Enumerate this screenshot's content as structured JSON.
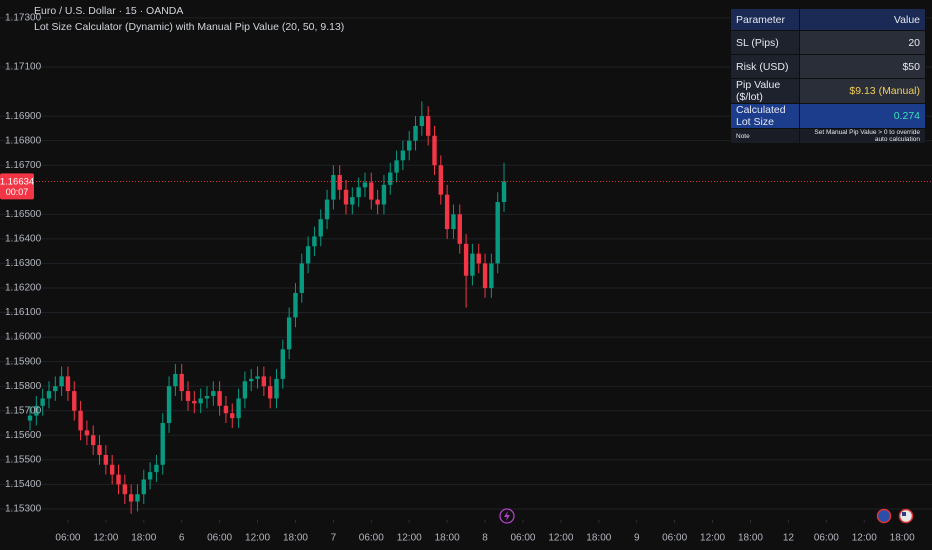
{
  "header": {
    "symbol": "Euro / U.S. Dollar · 15 · OANDA",
    "indicator": "Lot Size Calculator (Dynamic) with Manual Pip Value (20, 50, 9.13)"
  },
  "chart_data": {
    "type": "candlestick",
    "x": [
      0,
      1,
      2,
      3,
      4,
      5,
      6,
      7,
      8,
      9,
      10,
      11,
      12,
      13,
      14,
      15,
      16,
      17,
      18,
      19,
      20,
      21,
      22,
      23,
      24,
      25,
      26,
      27,
      28,
      29,
      30,
      31,
      32,
      33,
      34,
      35,
      36,
      37,
      38,
      39,
      40,
      41,
      42,
      43,
      44,
      45,
      46,
      47,
      48,
      49,
      50,
      51,
      52,
      53,
      54,
      55,
      56,
      57,
      58,
      59,
      60,
      61,
      62,
      63,
      64,
      65,
      66,
      67,
      68,
      69,
      70,
      71,
      72,
      73,
      74,
      75
    ],
    "open": [
      1.1566,
      1.1568,
      1.1572,
      1.1575,
      1.1578,
      1.158,
      1.1584,
      1.1578,
      1.157,
      1.1562,
      1.156,
      1.1556,
      1.1552,
      1.1548,
      1.1544,
      1.154,
      1.1536,
      1.1533,
      1.1536,
      1.1542,
      1.1545,
      1.1548,
      1.1565,
      1.158,
      1.1585,
      1.1578,
      1.1574,
      1.1573,
      1.1575,
      1.1576,
      1.1578,
      1.1572,
      1.1569,
      1.1567,
      1.1575,
      1.1582,
      1.1583,
      1.1584,
      1.158,
      1.1575,
      1.1583,
      1.1595,
      1.1608,
      1.1618,
      1.163,
      1.1637,
      1.1641,
      1.1648,
      1.1656,
      1.1666,
      1.166,
      1.1654,
      1.1657,
      1.1661,
      1.1663,
      1.1656,
      1.1654,
      1.1662,
      1.1667,
      1.1672,
      1.1676,
      1.168,
      1.1686,
      1.169,
      1.1682,
      1.167,
      1.1658,
      1.1644,
      1.165,
      1.1638,
      1.1625,
      1.1634,
      1.163,
      1.162,
      1.163,
      1.1655
    ],
    "high": [
      1.1572,
      1.1576,
      1.1579,
      1.1582,
      1.1584,
      1.1588,
      1.1588,
      1.1582,
      1.1574,
      1.1566,
      1.1564,
      1.156,
      1.1556,
      1.1552,
      1.1548,
      1.1544,
      1.154,
      1.154,
      1.1546,
      1.1549,
      1.1552,
      1.1569,
      1.1584,
      1.1589,
      1.1589,
      1.1582,
      1.1578,
      1.1579,
      1.158,
      1.1582,
      1.1582,
      1.1576,
      1.1573,
      1.1579,
      1.1586,
      1.1587,
      1.1588,
      1.1588,
      1.1584,
      1.1587,
      1.1599,
      1.1612,
      1.1622,
      1.1634,
      1.1641,
      1.1645,
      1.1652,
      1.166,
      1.167,
      1.167,
      1.1664,
      1.1661,
      1.1665,
      1.1667,
      1.1667,
      1.166,
      1.1666,
      1.1671,
      1.1676,
      1.168,
      1.1684,
      1.169,
      1.1696,
      1.1694,
      1.1686,
      1.1674,
      1.1662,
      1.1654,
      1.1654,
      1.1642,
      1.1638,
      1.1638,
      1.1634,
      1.1634,
      1.1659,
      1.1671
    ],
    "low": [
      1.1562,
      1.1564,
      1.1568,
      1.1571,
      1.1574,
      1.1576,
      1.1574,
      1.1566,
      1.1558,
      1.1556,
      1.1552,
      1.1548,
      1.1544,
      1.154,
      1.1536,
      1.1532,
      1.1528,
      1.1529,
      1.1532,
      1.1538,
      1.1541,
      1.1544,
      1.1561,
      1.1576,
      1.1574,
      1.157,
      1.1569,
      1.1569,
      1.1571,
      1.1572,
      1.1568,
      1.1565,
      1.1563,
      1.1563,
      1.1571,
      1.1578,
      1.1579,
      1.1576,
      1.1571,
      1.1571,
      1.1579,
      1.1591,
      1.1604,
      1.1614,
      1.1626,
      1.1633,
      1.1637,
      1.1644,
      1.1652,
      1.1656,
      1.165,
      1.165,
      1.1653,
      1.1657,
      1.1652,
      1.165,
      1.165,
      1.1658,
      1.1663,
      1.1668,
      1.1672,
      1.1676,
      1.1682,
      1.1678,
      1.1666,
      1.1654,
      1.164,
      1.164,
      1.1634,
      1.1612,
      1.1621,
      1.1626,
      1.1616,
      1.1616,
      1.1626,
      1.1651
    ],
    "close": [
      1.1568,
      1.1572,
      1.1575,
      1.1578,
      1.158,
      1.1584,
      1.1578,
      1.157,
      1.1562,
      1.156,
      1.1556,
      1.1552,
      1.1548,
      1.1544,
      1.154,
      1.1536,
      1.1533,
      1.1536,
      1.1542,
      1.1545,
      1.1548,
      1.1565,
      1.158,
      1.1585,
      1.1578,
      1.1574,
      1.1573,
      1.1575,
      1.1576,
      1.1578,
      1.1572,
      1.1569,
      1.1567,
      1.1575,
      1.1582,
      1.1583,
      1.1584,
      1.158,
      1.1575,
      1.1583,
      1.1595,
      1.1608,
      1.1618,
      1.163,
      1.1637,
      1.1641,
      1.1648,
      1.1656,
      1.1666,
      1.166,
      1.1654,
      1.1657,
      1.1661,
      1.1663,
      1.1656,
      1.1654,
      1.1662,
      1.1667,
      1.1672,
      1.1676,
      1.168,
      1.1686,
      1.169,
      1.1682,
      1.167,
      1.1658,
      1.1644,
      1.165,
      1.1638,
      1.1625,
      1.1634,
      1.163,
      1.162,
      1.163,
      1.1655,
      1.16634
    ],
    "up_color": "#089981",
    "down_color": "#f23645",
    "xlim": [
      -4.75,
      142.72
    ],
    "xticks": [
      {
        "value": 6,
        "label": "06:00"
      },
      {
        "value": 12,
        "label": "12:00"
      },
      {
        "value": 18,
        "label": "18:00"
      },
      {
        "value": 24,
        "label": "6"
      },
      {
        "value": 30,
        "label": "06:00"
      },
      {
        "value": 36,
        "label": "12:00"
      },
      {
        "value": 42,
        "label": "18:00"
      },
      {
        "value": 48,
        "label": "7"
      },
      {
        "value": 54,
        "label": "06:00"
      },
      {
        "value": 60,
        "label": "12:00"
      },
      {
        "value": 66,
        "label": "18:00"
      },
      {
        "value": 72,
        "label": "8"
      },
      {
        "value": 78,
        "label": "06:00"
      },
      {
        "value": 84,
        "label": "12:00"
      },
      {
        "value": 90,
        "label": "18:00"
      },
      {
        "value": 96,
        "label": "9"
      },
      {
        "value": 102,
        "label": "06:00"
      },
      {
        "value": 108,
        "label": "12:00"
      },
      {
        "value": 114,
        "label": "18:00"
      },
      {
        "value": 120,
        "label": "12"
      },
      {
        "value": 126,
        "label": "06:00"
      },
      {
        "value": 132,
        "label": "12:00"
      },
      {
        "value": 138,
        "label": "18:00"
      }
    ],
    "ylim": [
      1.15255,
      1.17373
    ],
    "yticks": [
      {
        "value": 1.173,
        "label": "1.17300"
      },
      {
        "value": 1.171,
        "label": "1.17100"
      },
      {
        "value": 1.169,
        "label": "1.16900"
      },
      {
        "value": 1.168,
        "label": "1.16800"
      },
      {
        "value": 1.167,
        "label": "1.16700"
      },
      {
        "value": 1.165,
        "label": "1.16500"
      },
      {
        "value": 1.164,
        "label": "1.16400"
      },
      {
        "value": 1.163,
        "label": "1.16300"
      },
      {
        "value": 1.162,
        "label": "1.16200"
      },
      {
        "value": 1.161,
        "label": "1.16100"
      },
      {
        "value": 1.16,
        "label": "1.16000"
      },
      {
        "value": 1.159,
        "label": "1.15900"
      },
      {
        "value": 1.158,
        "label": "1.15800"
      },
      {
        "value": 1.157,
        "label": "1.15700"
      },
      {
        "value": 1.156,
        "label": "1.15600"
      },
      {
        "value": 1.155,
        "label": "1.15500"
      },
      {
        "value": 1.154,
        "label": "1.15400"
      },
      {
        "value": 1.153,
        "label": "1.15300"
      }
    ],
    "grid": true,
    "current_price": 1.16634,
    "current_color": "#f23645",
    "countdown": "00:07"
  },
  "table": {
    "header": [
      "Parameter",
      "Value"
    ],
    "rows": [
      [
        "SL (Pips)",
        "20"
      ],
      [
        "Risk (USD)",
        "$50"
      ],
      [
        "Pip Value ($/lot)",
        "$9.13 (Manual)"
      ],
      [
        "Calculated Lot Size",
        "0.274"
      ],
      [
        "Note",
        "Set Manual Pip Value > 0 to override auto calculation"
      ]
    ]
  }
}
